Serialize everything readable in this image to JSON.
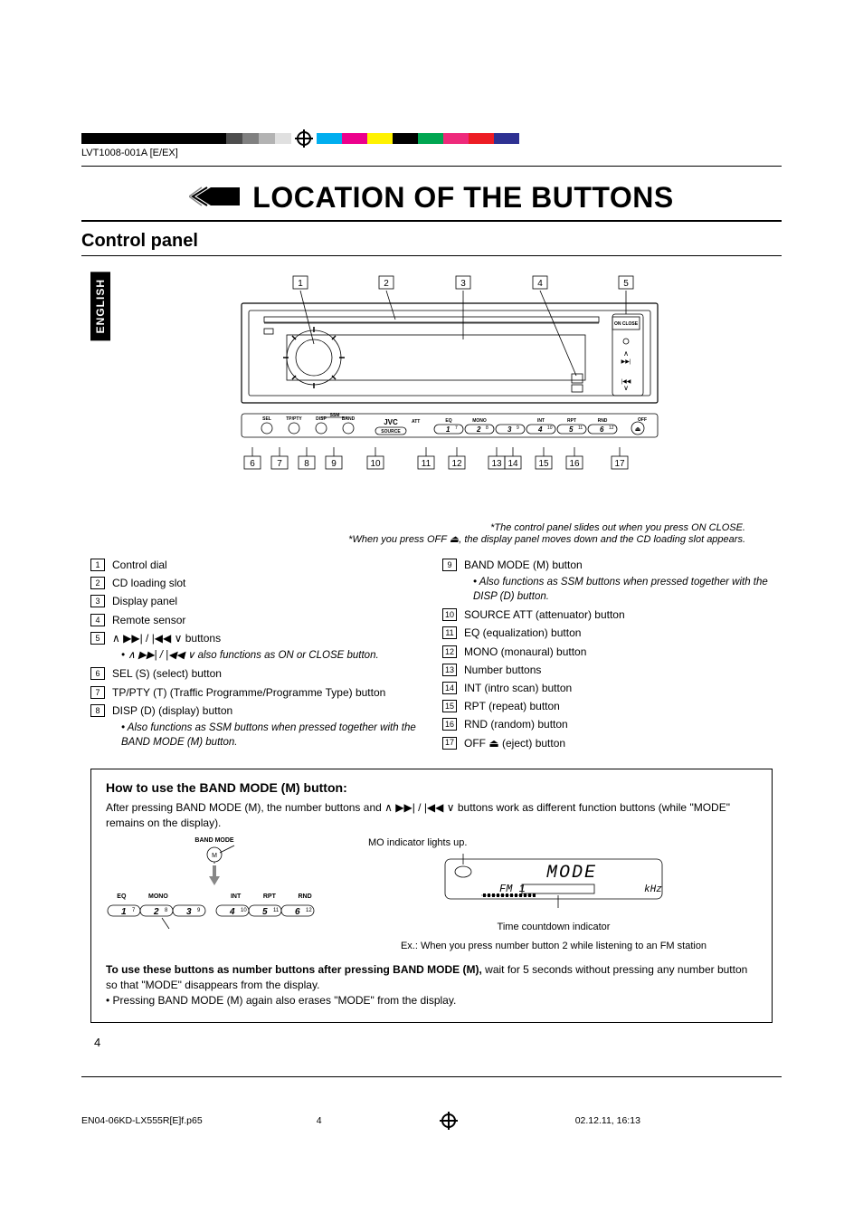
{
  "meta": {
    "doc_id": "LVT1008-001A [E/EX]",
    "footer_file": "EN04-06KD-LX555R[E]f.p65",
    "footer_page": "4",
    "footer_date": "02.12.11, 16:13",
    "page_number": "4",
    "language_tab": "ENGLISH"
  },
  "colors": {
    "printer_bar_left": [
      "#000000",
      "#000000",
      "#000000",
      "#000000",
      "#4d4d4d",
      "#808080",
      "#b3b3b3",
      "#e0e0e0"
    ],
    "printer_bar_left_widths": [
      40,
      40,
      40,
      40,
      18,
      18,
      18,
      18
    ],
    "printer_bar_right": [
      "#00aeef",
      "#ec008c",
      "#fff200",
      "#000000",
      "#00a651",
      "#ee2a7b",
      "#ed1c24",
      "#2e3192"
    ],
    "background": "#ffffff",
    "text": "#000000"
  },
  "headings": {
    "title": "LOCATION OF THE BUTTONS",
    "subtitle": "Control panel"
  },
  "diagram_callouts_top": [
    "1",
    "2",
    "3",
    "4",
    "5"
  ],
  "diagram_callouts_bottom": [
    "6",
    "7",
    "8",
    "9",
    "10",
    "11",
    "12",
    "13",
    "14",
    "15",
    "16",
    "17"
  ],
  "panel_button_labels": [
    "SEL",
    "TP/PTY",
    "DISP",
    "BAND MODE",
    "SOURCE",
    "ATT",
    "EQ",
    "MONO",
    "INT",
    "RPT",
    "RND",
    "OFF"
  ],
  "panel_number_labels": [
    "1",
    "2",
    "3",
    "4",
    "5",
    "6"
  ],
  "panel_number_sups": [
    "7",
    "8",
    "9",
    "10",
    "11",
    "12"
  ],
  "panel_brand": "JVC",
  "panel_right_labels": [
    "ON CLOSE"
  ],
  "diagram_notes": {
    "line1": "*The control panel slides out when you press ON CLOSE.",
    "line2_pre": "*When you press OFF ",
    "line2_post": ", the display panel moves down and the CD loading slot appears."
  },
  "left_list": [
    {
      "n": "1",
      "text": "Control dial"
    },
    {
      "n": "2",
      "text": "CD loading slot"
    },
    {
      "n": "3",
      "text": "Display panel"
    },
    {
      "n": "4",
      "text": "Remote sensor"
    },
    {
      "n": "5",
      "text_pre": "",
      "text_post": " buttons",
      "sym": "∧ ▶▶| / |◀◀ ∨",
      "sub": "∧ ▶▶| / |◀◀ ∨  also functions as ON or CLOSE button."
    },
    {
      "n": "6",
      "text": "SEL (S) (select) button"
    },
    {
      "n": "7",
      "text": "TP/PTY (T) (Traffic Programme/Programme Type) button"
    },
    {
      "n": "8",
      "text": "DISP (D) (display) button",
      "sub": "Also functions as SSM buttons when pressed together with the BAND MODE (M) button."
    }
  ],
  "right_list": [
    {
      "n": "9",
      "text": "BAND MODE (M) button",
      "sub": "Also functions as SSM buttons when pressed together with the DISP (D) button."
    },
    {
      "n": "10",
      "text": "SOURCE ATT (attenuator) button"
    },
    {
      "n": "11",
      "text": "EQ (equalization) button"
    },
    {
      "n": "12",
      "text": "MONO (monaural) button"
    },
    {
      "n": "13",
      "text": "Number buttons"
    },
    {
      "n": "14",
      "text": "INT (intro scan) button"
    },
    {
      "n": "15",
      "text": "RPT (repeat) button"
    },
    {
      "n": "16",
      "text": "RND (random) button"
    },
    {
      "n": "17",
      "text": "OFF ⏏ (eject) button"
    }
  ],
  "info_box": {
    "title": "How to use the BAND MODE (M) button:",
    "intro_pre": "After pressing BAND MODE (M), the number buttons and  ",
    "intro_sym": "∧ ▶▶| / |◀◀ ∨",
    "intro_post": "  buttons work as different function buttons (while \"MODE\" remains on the display).",
    "band_mode_label": "BAND MODE",
    "band_mode_m": "M",
    "eq_labels_left": [
      "EQ",
      "MONO"
    ],
    "eq_labels_right": [
      "INT",
      "RPT",
      "RND"
    ],
    "num_btns": [
      "1",
      "2",
      "3",
      "4",
      "5",
      "6"
    ],
    "num_sups": [
      "7",
      "8",
      "9",
      "10",
      "11",
      "12"
    ],
    "mo_label": "MO indicator lights up.",
    "display_word": "MODE",
    "display_fm": "FM 1",
    "display_khz": "kHz",
    "time_label": "Time countdown indicator",
    "ex_label": "Ex.: When you press number button 2 while listening to an FM station",
    "foot1_bold": "To use these buttons as number buttons after pressing BAND MODE (M),",
    "foot1_rest": " wait for 5 seconds without pressing any number button so that \"MODE\" disappears from the display.",
    "foot2": "• Pressing BAND MODE (M) again also erases \"MODE\" from the display."
  }
}
